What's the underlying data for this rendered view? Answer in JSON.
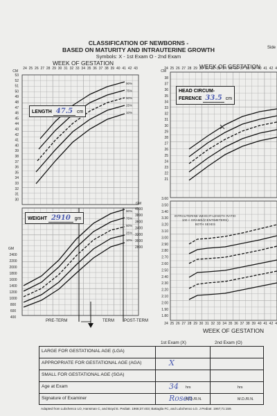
{
  "header": {
    "title_line1": "CLASSIFICATION OF NEWBORNS -",
    "title_line2": "BASED ON MATURITY AND INTRAUTERINE GROWTH",
    "symbols": "Symbols:  X - 1st Exam   O - 2nd Exam",
    "corner": "Side"
  },
  "charts": {
    "week_label": "WEEK OF GESTATION",
    "weeks": [
      "24",
      "25",
      "26",
      "27",
      "28",
      "29",
      "30",
      "31",
      "32",
      "33",
      "34",
      "35",
      "36",
      "37",
      "38",
      "39",
      "40",
      "41",
      "42",
      "43"
    ],
    "length": {
      "label": "LENGTH",
      "value": "47.5",
      "unit": "cm",
      "axis_unit": "CM",
      "ticks": [
        "53",
        "52",
        "51",
        "50",
        "49",
        "48",
        "47",
        "46",
        "45",
        "44",
        "43",
        "42",
        "41",
        "40",
        "39",
        "38",
        "37",
        "36",
        "35",
        "34",
        "33",
        "32",
        "31",
        "30"
      ],
      "percentiles": [
        "90%",
        "75%",
        "50%",
        "25%",
        "10%"
      ]
    },
    "weight": {
      "label": "WEIGHT",
      "value": "2910",
      "unit": "gm",
      "axis_unit": "GM",
      "ticks_left": [
        "2400",
        "2200",
        "2000",
        "1800",
        "1600",
        "1400",
        "1200",
        "1000",
        "800",
        "600",
        "400"
      ],
      "ticks_right": [
        "4000",
        "3800",
        "3600",
        "3400",
        "3200",
        "3000",
        "2800"
      ],
      "percentiles": [
        "90%",
        "75%",
        "50%",
        "25%",
        "10%"
      ]
    },
    "head": {
      "label_line1": "HEAD CIRCUM-",
      "label_line2": "FERENCE",
      "value": "33.5",
      "unit": "cm",
      "axis_unit": "CM",
      "ticks": [
        "38",
        "37",
        "36",
        "35",
        "34",
        "33",
        "32",
        "31",
        "30",
        "29",
        "28",
        "27",
        "26",
        "25",
        "24",
        "23",
        "22",
        "21"
      ]
    },
    "ratio": {
      "label_line1": "INTRAUTERINE WEIGHT-LENGTH RATIO",
      "label_line2": "100 × GRAMS/(CENTIMETERS)",
      "label_line3": "BOTH SEXES",
      "ticks": [
        "3.60",
        "3.50",
        "3.40",
        "3.30",
        "3.20",
        "3.10",
        "3.00",
        "2.90",
        "2.80",
        "2.70",
        "2.60",
        "2.50",
        "2.40",
        "2.30",
        "2.20",
        "2.10",
        "2.00",
        "1.90",
        "1.80"
      ]
    },
    "term_labels": {
      "preterm": "PRE-TERM",
      "term": "TERM",
      "postterm": "POST-TERM"
    }
  },
  "exam_table": {
    "col1": "1st Exam (X)",
    "col2": "2nd Exam (O)",
    "rows": [
      {
        "label": "LARGE FOR GESTATIONAL AGE (LGA)",
        "v1": "",
        "v2": ""
      },
      {
        "label": "APPROPRIATE FOR GESTATIONAL AGE (AGA)",
        "v1": "X",
        "v2": ""
      },
      {
        "label": "SMALL FOR GESTATIONAL AGE (SGA)",
        "v1": "",
        "v2": ""
      },
      {
        "label": "Age at Exam",
        "v1": "34",
        "v1_suffix": "hrs",
        "v2": "",
        "v2_suffix": "hrs"
      },
      {
        "label": "Signature of Examiner",
        "v1": "Rosen",
        "v1_suffix": "M.D./R.N.",
        "v2": "",
        "v2_suffix": "M.D./R.N."
      }
    ]
  },
  "footer": "Adapted from Lubchenco LO, Hansman C, and Boyd E. Pediatr. 1966;37:403; Battaglia FC, and Lubchenco LO. J Pediatr. 1967;71:159."
}
